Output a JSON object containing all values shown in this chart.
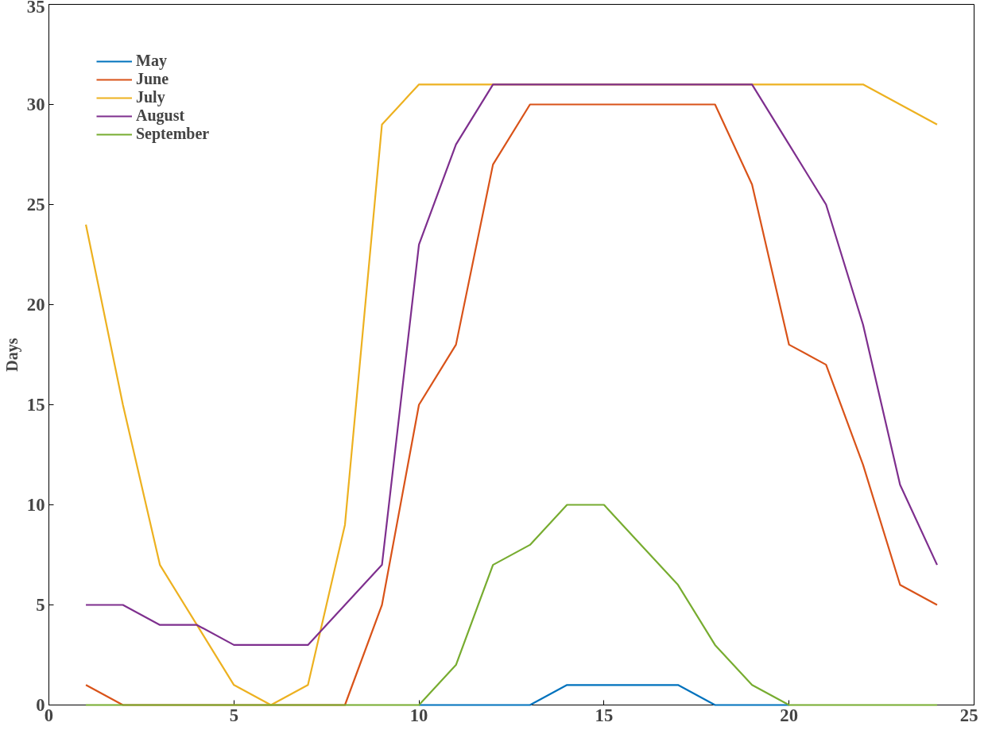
{
  "chart_data": {
    "type": "line",
    "ylabel": "Days",
    "x": [
      1,
      2,
      3,
      4,
      5,
      6,
      7,
      8,
      9,
      10,
      11,
      12,
      13,
      14,
      15,
      16,
      17,
      18,
      19,
      20,
      21,
      22,
      23,
      24
    ],
    "xlim": [
      0,
      25
    ],
    "xticks": [
      0,
      5,
      10,
      15,
      20,
      25
    ],
    "ylim": [
      0,
      35
    ],
    "yticks": [
      0,
      5,
      10,
      15,
      20,
      25,
      30,
      35
    ],
    "grid": false,
    "legend": "top left",
    "marker": "none",
    "line_style": "solid",
    "series": [
      {
        "name": "May",
        "color": "#0072bd",
        "values": [
          null,
          null,
          null,
          null,
          null,
          null,
          null,
          null,
          null,
          0,
          0,
          0,
          0,
          1,
          1,
          1,
          1,
          0,
          0,
          0,
          null,
          null,
          null,
          null
        ]
      },
      {
        "name": "June",
        "color": "#d95319",
        "values": [
          1,
          0,
          0,
          0,
          0,
          0,
          0,
          0,
          5,
          15,
          18,
          27,
          30,
          30,
          30,
          30,
          30,
          30,
          26,
          18,
          17,
          12,
          6,
          5
        ]
      },
      {
        "name": "July",
        "color": "#edb120",
        "values": [
          24,
          15,
          7,
          4,
          1,
          0,
          1,
          9,
          29,
          31,
          31,
          31,
          31,
          31,
          31,
          31,
          31,
          31,
          31,
          31,
          31,
          31,
          30,
          29
        ]
      },
      {
        "name": "August",
        "color": "#7e2f8e",
        "values": [
          5,
          5,
          4,
          4,
          3,
          3,
          3,
          5,
          7,
          23,
          28,
          31,
          31,
          31,
          31,
          31,
          31,
          31,
          31,
          28,
          25,
          19,
          11,
          7
        ]
      },
      {
        "name": "September",
        "color": "#77ac30",
        "values": [
          0,
          0,
          0,
          0,
          0,
          0,
          0,
          0,
          0,
          0,
          2,
          7,
          8,
          10,
          10,
          8,
          6,
          3,
          1,
          0,
          0,
          0,
          0,
          0
        ]
      }
    ]
  }
}
